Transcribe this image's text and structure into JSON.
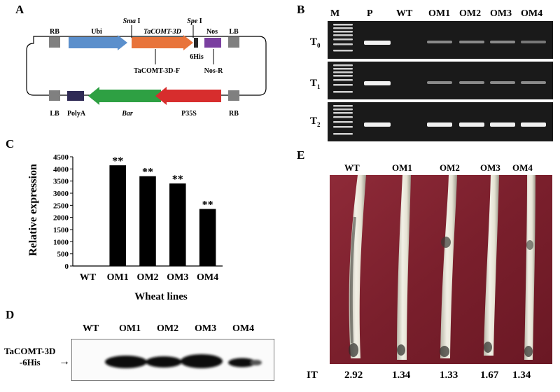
{
  "panels": {
    "a": "A",
    "b": "B",
    "c": "C",
    "d": "D",
    "e": "E"
  },
  "construct": {
    "top": {
      "rb": "RB",
      "ubi": "Ubi",
      "sma": "Sma",
      "sma_roman": " I",
      "gene": "TaCOMT-3D",
      "spe": "Spe",
      "spe_roman": " I",
      "nos": "Nos",
      "lb": "LB",
      "his": "6His",
      "primer_f": "TaCOMT-3D-F",
      "primer_r": "Nos-R"
    },
    "bottom": {
      "lb": "LB",
      "polya": "PolyA",
      "bar": "Bar",
      "p35s": "P35S",
      "rb": "RB"
    },
    "colors": {
      "ubi": "#5b8fcc",
      "gene": "#e8743b",
      "nos": "#7a3fa0",
      "polya": "#2f2a55",
      "bar": "#2ea043",
      "p35s": "#d72d2d",
      "border": "#808080"
    }
  },
  "gel": {
    "lanes": [
      "M",
      "P",
      "WT",
      "OM1",
      "OM2",
      "OM3",
      "OM4"
    ],
    "rows": [
      {
        "gen": "T",
        "sub": "0"
      },
      {
        "gen": "T",
        "sub": "1"
      },
      {
        "gen": "T",
        "sub": "2"
      }
    ]
  },
  "chart_data": {
    "type": "bar",
    "categories": [
      "WT",
      "OM1",
      "OM2",
      "OM3",
      "OM4"
    ],
    "values": [
      0,
      4150,
      3700,
      3400,
      2350
    ],
    "annotations": [
      "",
      "**",
      "**",
      "**",
      "**"
    ],
    "xlabel": "Wheat lines",
    "ylabel": "Relative expression",
    "ylim": [
      0,
      4500
    ],
    "yticks": [
      0,
      500,
      1000,
      1500,
      2000,
      2500,
      3000,
      3500,
      4000,
      4500
    ],
    "bar_color": "#000000"
  },
  "western": {
    "lanes": [
      "WT",
      "OM1",
      "OM2",
      "OM3",
      "OM4"
    ],
    "label_line1": "TaCOMT-3D",
    "label_line2": "-6His"
  },
  "stems": {
    "labels": [
      "WT",
      "OM1",
      "OM2",
      "OM3",
      "OM4"
    ],
    "it_label": "IT",
    "it_values": [
      "2.92",
      "1.34",
      "1.33",
      "1.67",
      "1.34"
    ]
  }
}
